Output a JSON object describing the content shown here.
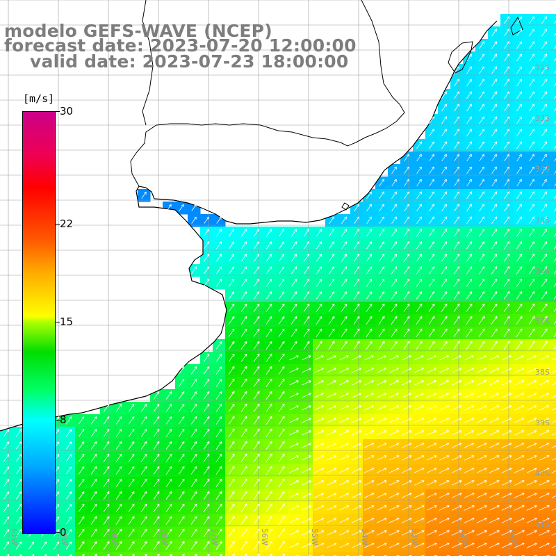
{
  "title": {
    "model": "modelo GEFS-WAVE (NCEP)",
    "forecast": "forecast date: 2023-07-20 12:00:00",
    "valid": "valid date: 2023-07-23 18:00:00"
  },
  "colorbar": {
    "unit": "[m/s]",
    "labels": [
      "30",
      "22",
      "15",
      "8",
      "0"
    ],
    "values": [
      30,
      22,
      15,
      8,
      0
    ]
  },
  "map": {
    "lat_labels": [
      "32S",
      "33S",
      "34S",
      "35S",
      "36S",
      "37S",
      "38S",
      "39S",
      "40S",
      "41S"
    ],
    "lon_labels": [
      "61W",
      "60W",
      "59W",
      "58W",
      "57W",
      "56W",
      "55W",
      "54W",
      "53W",
      "52W",
      "51W"
    ],
    "colors": {
      "land": "#ffffff",
      "coast": "#000000",
      "grid": "#999999",
      "label": "#9a9a9a"
    }
  }
}
